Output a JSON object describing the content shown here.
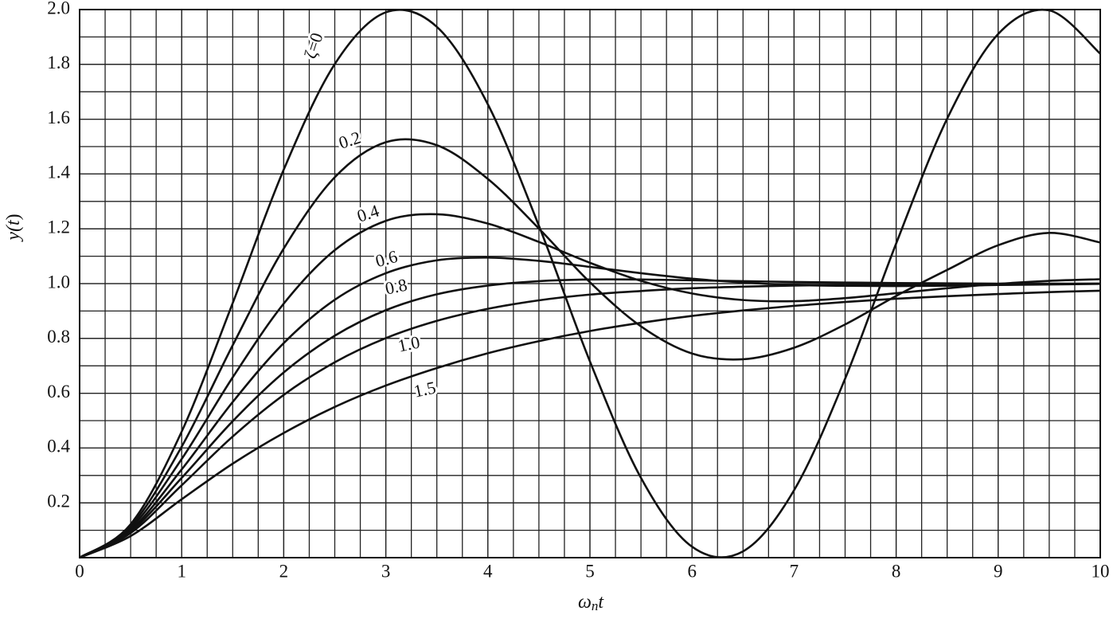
{
  "chart_data": {
    "type": "line",
    "xlabel": [
      "ω",
      "n",
      "t"
    ],
    "ylabel": [
      "y(",
      "t",
      ")"
    ],
    "x": [
      0,
      0.5,
      1,
      1.5,
      2,
      2.5,
      3,
      3.5,
      4,
      4.5,
      5,
      5.5,
      6,
      6.5,
      7,
      7.5,
      8,
      8.5,
      9,
      9.5,
      10
    ],
    "series": [
      {
        "name": "ζ=0",
        "color": "#111",
        "values": [
          0,
          0.122,
          0.46,
          0.929,
          1.416,
          1.801,
          1.99,
          1.937,
          1.654,
          1.211,
          0.716,
          0.291,
          0.04,
          0.023,
          0.246,
          0.653,
          1.146,
          1.602,
          1.911,
          1.997,
          1.839
        ]
      },
      {
        "name": "0.2",
        "color": "#111",
        "values": [
          0,
          0.115,
          0.405,
          0.775,
          1.128,
          1.388,
          1.516,
          1.505,
          1.382,
          1.201,
          1.005,
          0.844,
          0.745,
          0.724,
          0.766,
          0.851,
          0.955,
          1.05,
          1.14,
          1.185,
          1.15
        ]
      },
      {
        "name": "0.4",
        "color": "#111",
        "values": [
          0,
          0.108,
          0.36,
          0.658,
          0.927,
          1.122,
          1.229,
          1.253,
          1.219,
          1.152,
          1.076,
          1.01,
          0.964,
          0.94,
          0.936,
          0.947,
          0.965,
          0.983,
          0.999,
          1.01,
          1.016
        ]
      },
      {
        "name": "0.6",
        "color": "#111",
        "values": [
          0,
          0.101,
          0.322,
          0.568,
          0.783,
          0.941,
          1.038,
          1.085,
          1.095,
          1.083,
          1.061,
          1.038,
          1.018,
          1.004,
          0.995,
          0.992,
          0.991,
          0.992,
          0.995,
          0.997,
          0.999
        ]
      },
      {
        "name": "0.8",
        "color": "#111",
        "values": [
          0,
          0.096,
          0.291,
          0.498,
          0.676,
          0.81,
          0.903,
          0.961,
          0.993,
          1.009,
          1.015,
          1.015,
          1.012,
          1.009,
          1.006,
          1.004,
          1.002,
          1.001,
          1.0,
          1.0,
          1.0
        ]
      },
      {
        "name": "1.0",
        "color": "#111",
        "values": [
          0,
          0.09,
          0.264,
          0.442,
          0.594,
          0.713,
          0.801,
          0.864,
          0.908,
          0.939,
          0.96,
          0.973,
          0.983,
          0.989,
          0.993,
          0.995,
          0.997,
          0.998,
          0.999,
          0.999,
          1.0
        ]
      },
      {
        "name": "1.5",
        "color": "#111",
        "values": [
          0,
          0.079,
          0.213,
          0.343,
          0.455,
          0.55,
          0.628,
          0.692,
          0.746,
          0.79,
          0.827,
          0.857,
          0.882,
          0.902,
          0.919,
          0.933,
          0.945,
          0.954,
          0.962,
          0.969,
          0.974
        ]
      }
    ],
    "xlim": [
      0,
      10
    ],
    "xticks": [
      0,
      1,
      2,
      3,
      4,
      5,
      6,
      7,
      8,
      9,
      10
    ],
    "ylim": [
      0,
      2
    ],
    "yticks": [
      0.2,
      0.4,
      0.6,
      0.8,
      {
        "value": 1,
        "label": "1.0"
      },
      1.2,
      1.4,
      1.6,
      1.8,
      {
        "value": 2,
        "label": "2.0"
      }
    ],
    "grid": true,
    "minor_grid": {
      "x": 0.25,
      "y": 0.1
    }
  }
}
